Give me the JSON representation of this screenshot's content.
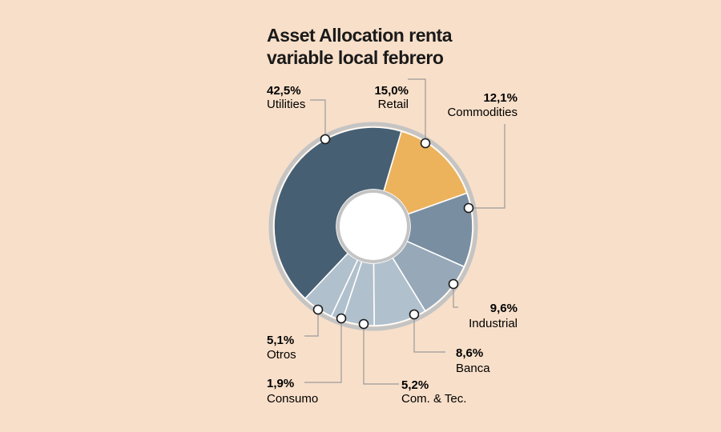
{
  "title_line1": "Asset Allocation renta",
  "title_line2": "variable local febrero",
  "chart_data": {
    "type": "pie",
    "variant": "donut",
    "title": "Asset Allocation renta variable local febrero",
    "slices": [
      {
        "name": "Retail",
        "value": 15.0,
        "label": "15,0%",
        "color": "#ecb35c"
      },
      {
        "name": "Commodities",
        "value": 12.1,
        "label": "12,1%",
        "color": "#7a8ea1"
      },
      {
        "name": "Industrial",
        "value": 9.6,
        "label": "9,6%",
        "color": "#97a8b8"
      },
      {
        "name": "Banca",
        "value": 8.6,
        "label": "8,6%",
        "color": "#b1c0cd"
      },
      {
        "name": "Com. & Tec.",
        "value": 5.2,
        "label": "5,2%",
        "color": "#b1c0cd"
      },
      {
        "name": "Consumo",
        "value": 1.9,
        "label": "1,9%",
        "color": "#b1c0cd"
      },
      {
        "name": "Otros",
        "value": 5.1,
        "label": "5,1%",
        "color": "#b1c0cd"
      },
      {
        "name": "Utilities",
        "value": 42.5,
        "label": "42,5%",
        "color": "#475f73"
      }
    ]
  }
}
